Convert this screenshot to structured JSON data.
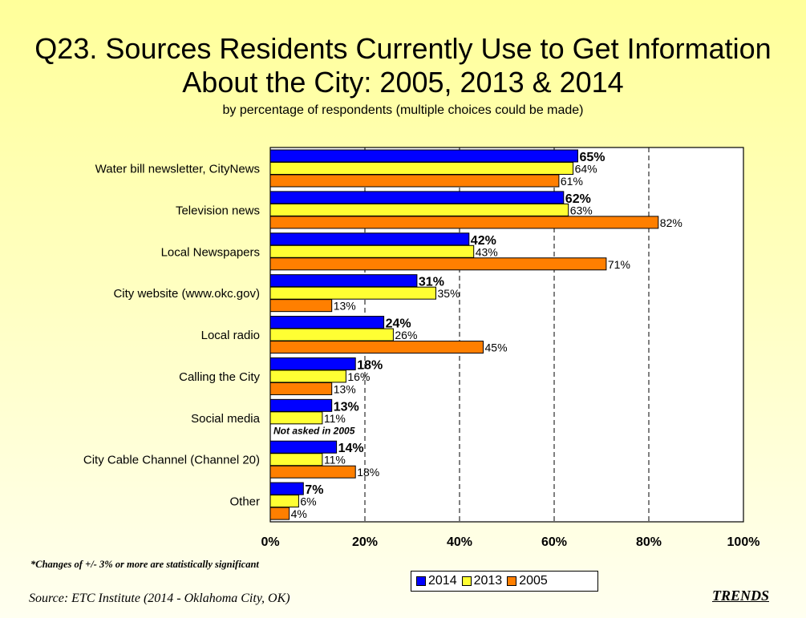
{
  "title_line1": "Q23. Sources Residents Currently Use to Get Information",
  "title_line2": "About the City:  2005, 2013 & 2014",
  "subtitle": "by percentage of respondents (multiple choices could be made)",
  "note": "*Changes of +/- 3% or more are statistically significant",
  "source": "Source:  ETC Institute (2014 - Oklahoma City, OK)",
  "trends": "TRENDS",
  "colors": {
    "2014": "#0000ff",
    "2013": "#ffff33",
    "2005": "#ff7f00",
    "grid": "#000000"
  },
  "chart_data": {
    "type": "bar",
    "orientation": "horizontal",
    "categories": [
      "Water bill newsletter, CityNews",
      "Television news",
      "Local Newspapers",
      "City website (www.okc.gov)",
      "Local radio",
      "Calling the City",
      "Social media",
      "City Cable Channel (Channel 20)",
      "Other"
    ],
    "series": [
      {
        "name": "2014",
        "values": [
          65,
          62,
          42,
          31,
          24,
          18,
          13,
          14,
          7
        ]
      },
      {
        "name": "2013",
        "values": [
          64,
          63,
          43,
          35,
          26,
          16,
          11,
          11,
          6
        ]
      },
      {
        "name": "2005",
        "values": [
          61,
          82,
          71,
          13,
          45,
          13,
          null,
          18,
          4
        ]
      }
    ],
    "value_labels": {
      "2014": [
        "65%",
        "62%",
        "42%",
        "31%",
        "24%",
        "18%",
        "13%",
        "14%",
        "7%"
      ],
      "2013": [
        "64%",
        "63%",
        "43%",
        "35%",
        "26%",
        "16%",
        "11%",
        "11%",
        "6%"
      ],
      "2005": [
        "61%",
        "82%",
        "71%",
        "13%",
        "45%",
        "13%",
        "",
        "18%",
        "4%"
      ]
    },
    "annotation": "Not asked in 2005",
    "xlim": [
      0,
      100
    ],
    "xticks": [
      "0%",
      "20%",
      "40%",
      "60%",
      "80%",
      "100%"
    ],
    "legend": [
      "2014",
      "2013",
      "2005"
    ],
    "legend_position": "bottom",
    "grid": "vertical dashed"
  }
}
